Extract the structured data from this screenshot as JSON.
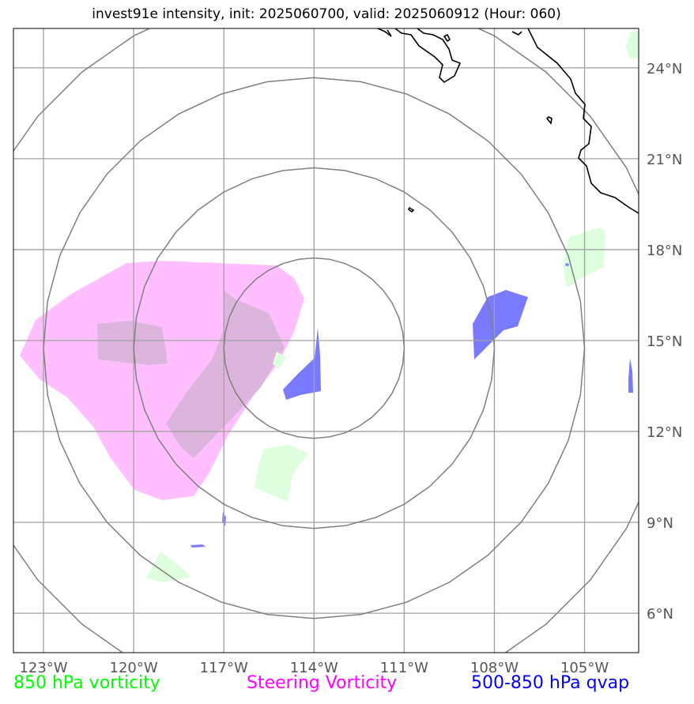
{
  "title": "invest91e intensity, init: 2025060700, valid: 2025060912 (Hour: 060)",
  "map": {
    "lon_range": [
      -124,
      -103.2
    ],
    "lat_range": [
      4.7,
      25.3
    ],
    "center": {
      "lon": -114,
      "lat": 14.75
    },
    "range_ring_radii_deg": [
      3,
      6,
      9,
      12
    ],
    "lon_ticks": [
      {
        "value": -123,
        "label": "123°W"
      },
      {
        "value": -120,
        "label": "120°W"
      },
      {
        "value": -117,
        "label": "117°W"
      },
      {
        "value": -114,
        "label": "114°W"
      },
      {
        "value": -111,
        "label": "111°W"
      },
      {
        "value": -108,
        "label": "108°W"
      },
      {
        "value": -105,
        "label": "105°W"
      }
    ],
    "lat_ticks": [
      {
        "value": 24,
        "label": "24°N"
      },
      {
        "value": 21,
        "label": "21°N"
      },
      {
        "value": 18,
        "label": "18°N"
      },
      {
        "value": 15,
        "label": "15°N"
      },
      {
        "value": 12,
        "label": "12°N"
      },
      {
        "value": 9,
        "label": "9°N"
      },
      {
        "value": 6,
        "label": "6°N"
      }
    ],
    "colors": {
      "grid": "#a0a0a0",
      "rings": "#808080",
      "coast": "#000000",
      "vort850": "#ddffdd",
      "steering": "#ff80ff",
      "qvap": "#7a7aff"
    }
  },
  "legend": {
    "vort850": {
      "label": "850 hPa vorticity",
      "color": "#00ff00"
    },
    "steering": {
      "label": "Steering Vorticity",
      "color": "#ff00ff"
    },
    "qvap": {
      "label": "500-850 hPa qvap",
      "color": "#0000ff"
    }
  }
}
